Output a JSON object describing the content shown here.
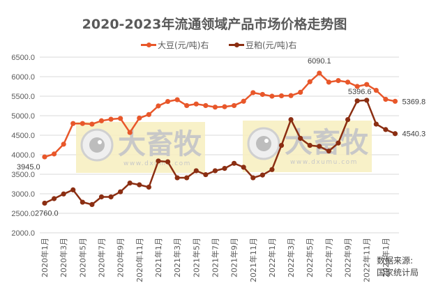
{
  "title": "2020-2023年流通领域产品市场价格走势图",
  "legend": [
    {
      "label": "大豆(元/吨)右",
      "color": "#E8572A"
    },
    {
      "label": "豆粕(元/吨)右",
      "color": "#8B2E12"
    }
  ],
  "source": {
    "line1": "数据来源:",
    "line2": "国家统计局"
  },
  "watermark": {
    "brand": "大畜牧",
    "url": "www.dxumu.com"
  },
  "chart_data": {
    "type": "line",
    "title": "2020-2023年流通领域产品市场价格走势图",
    "xlabel": "",
    "ylabel": "",
    "ylim": [
      2000,
      6500
    ],
    "yticks": [
      "2000.0",
      "2500.0",
      "3000.0",
      "3500.0",
      "4000.0",
      "4500.0",
      "5000.0",
      "5500.0",
      "6000.0",
      "6500.0"
    ],
    "grid": true,
    "legend_position": "top",
    "x": [
      "2020年1月",
      "2020年2月",
      "2020年3月",
      "2020年4月",
      "2020年5月",
      "2020年6月",
      "2020年7月",
      "2020年8月",
      "2020年9月",
      "2020年10月",
      "2020年11月",
      "2020年12月",
      "2021年1月",
      "2021年2月",
      "2021年3月",
      "2021年4月",
      "2021年5月",
      "2021年6月",
      "2021年7月",
      "2021年8月",
      "2021年9月",
      "2021年10月",
      "2021年11月",
      "2021年12月",
      "2022年1月",
      "2022年2月",
      "2022年3月",
      "2022年4月",
      "2022年5月",
      "2022年6月",
      "2022年7月",
      "2022年8月",
      "2022年9月",
      "2022年10月",
      "2022年11月",
      "2022年12月",
      "2023年1月",
      "2023年2月"
    ],
    "xtick_labels": [
      "2020年1月",
      "2020年3月",
      "2020年5月",
      "2020年7月",
      "2020年9月",
      "2020年11月",
      "2021年1月",
      "2021年3月",
      "2021年5月",
      "2021年7月",
      "2021年9月",
      "2021年11月",
      "2022年1月",
      "2022年3月",
      "2022年5月",
      "2022年7月",
      "2022年9月",
      "2022年11月",
      "2023年1月"
    ],
    "series": [
      {
        "name": "大豆(元/吨)右",
        "color": "#E8572A",
        "values": [
          3945.0,
          4020,
          4270,
          4800,
          4800,
          4785,
          4870,
          4910,
          4930,
          4570,
          4940,
          5030,
          5250,
          5365,
          5410,
          5260,
          5300,
          5260,
          5220,
          5230,
          5260,
          5370,
          5590,
          5545,
          5500,
          5510,
          5515,
          5600,
          5870,
          6090.1,
          5860,
          5900,
          5860,
          5750,
          5800,
          5650,
          5420,
          5369.8
        ]
      },
      {
        "name": "豆粕(元/吨)右",
        "color": "#8B2E12",
        "values": [
          2760.0,
          2875,
          2995,
          3100,
          2785,
          2725,
          2920,
          2920,
          3050,
          3275,
          3230,
          3170,
          3840,
          3820,
          3410,
          3410,
          3590,
          3490,
          3590,
          3650,
          3780,
          3680,
          3410,
          3480,
          3620,
          4240,
          4900,
          4420,
          4240,
          4215,
          4095,
          4300,
          4900,
          5380,
          5396.6,
          4785,
          4645,
          4540.3
        ]
      }
    ],
    "annotations": [
      {
        "series": 0,
        "index": 0,
        "text": "3945.0"
      },
      {
        "series": 0,
        "index": 29,
        "text": "6090.1"
      },
      {
        "series": 0,
        "index": 37,
        "text": "5369.8"
      },
      {
        "series": 1,
        "index": 0,
        "text": "2760.0"
      },
      {
        "series": 1,
        "index": 34,
        "text": "5396.6"
      },
      {
        "series": 1,
        "index": 37,
        "text": "4540.3"
      }
    ]
  }
}
